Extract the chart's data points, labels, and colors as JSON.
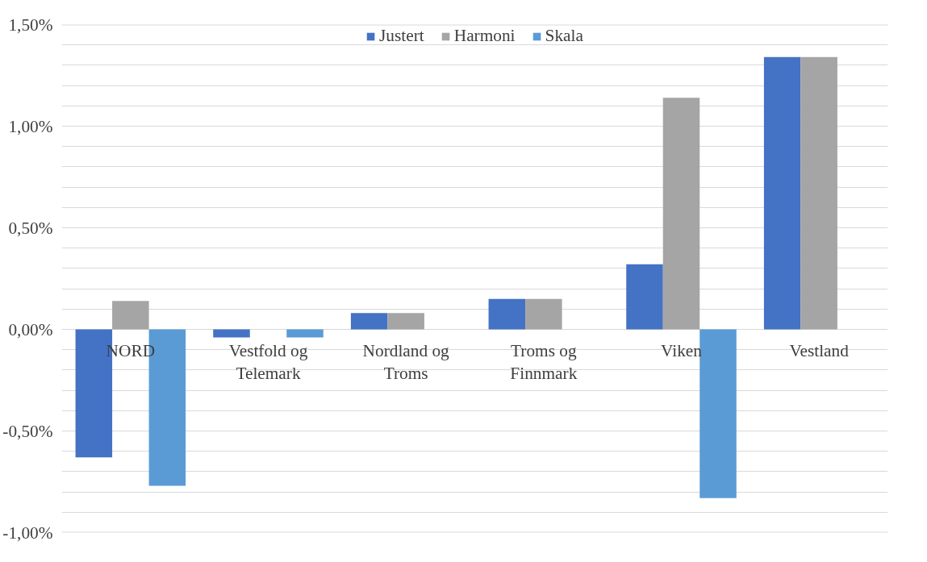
{
  "chart_data": {
    "type": "bar",
    "categories": [
      "NORD",
      "Vestfold og\nTelemark",
      "Nordland og\nTroms",
      "Troms og\nFinnmark",
      "Viken",
      "Vestland"
    ],
    "series": [
      {
        "name": "Justert",
        "color": "#4472c4",
        "values": [
          -0.63,
          -0.04,
          0.08,
          0.15,
          0.32,
          1.34
        ]
      },
      {
        "name": "Harmoni",
        "color": "#a5a5a5",
        "values": [
          0.14,
          0,
          0.08,
          0.15,
          1.14,
          1.34
        ]
      },
      {
        "name": "Skala",
        "color": "#5b9bd5",
        "values": [
          -0.77,
          -0.04,
          0,
          0,
          -0.83,
          0
        ]
      }
    ],
    "ylim": [
      -1.0,
      1.5
    ],
    "yticks": [
      {
        "value": -1.0,
        "label": "-1,00%"
      },
      {
        "value": -0.9,
        "label": null
      },
      {
        "value": -0.8,
        "label": null
      },
      {
        "value": -0.7,
        "label": null
      },
      {
        "value": -0.6,
        "label": null
      },
      {
        "value": -0.5,
        "label": "-0,50%"
      },
      {
        "value": -0.4,
        "label": null
      },
      {
        "value": -0.3,
        "label": null
      },
      {
        "value": -0.2,
        "label": null
      },
      {
        "value": -0.1,
        "label": null
      },
      {
        "value": 0,
        "label": "0,00%"
      },
      {
        "value": 0.1,
        "label": null
      },
      {
        "value": 0.2,
        "label": null
      },
      {
        "value": 0.3,
        "label": null
      },
      {
        "value": 0.4,
        "label": null
      },
      {
        "value": 0.5,
        "label": "0,50%"
      },
      {
        "value": 0.6,
        "label": null
      },
      {
        "value": 0.7,
        "label": null
      },
      {
        "value": 0.8,
        "label": null
      },
      {
        "value": 0.9,
        "label": null
      },
      {
        "value": 1.0,
        "label": "1,00%"
      },
      {
        "value": 1.1,
        "label": null
      },
      {
        "value": 1.2,
        "label": null
      },
      {
        "value": 1.3,
        "label": null
      },
      {
        "value": 1.4,
        "label": null
      },
      {
        "value": 1.5,
        "label": "1,50%"
      }
    ],
    "grid": "y",
    "legend": "top"
  }
}
